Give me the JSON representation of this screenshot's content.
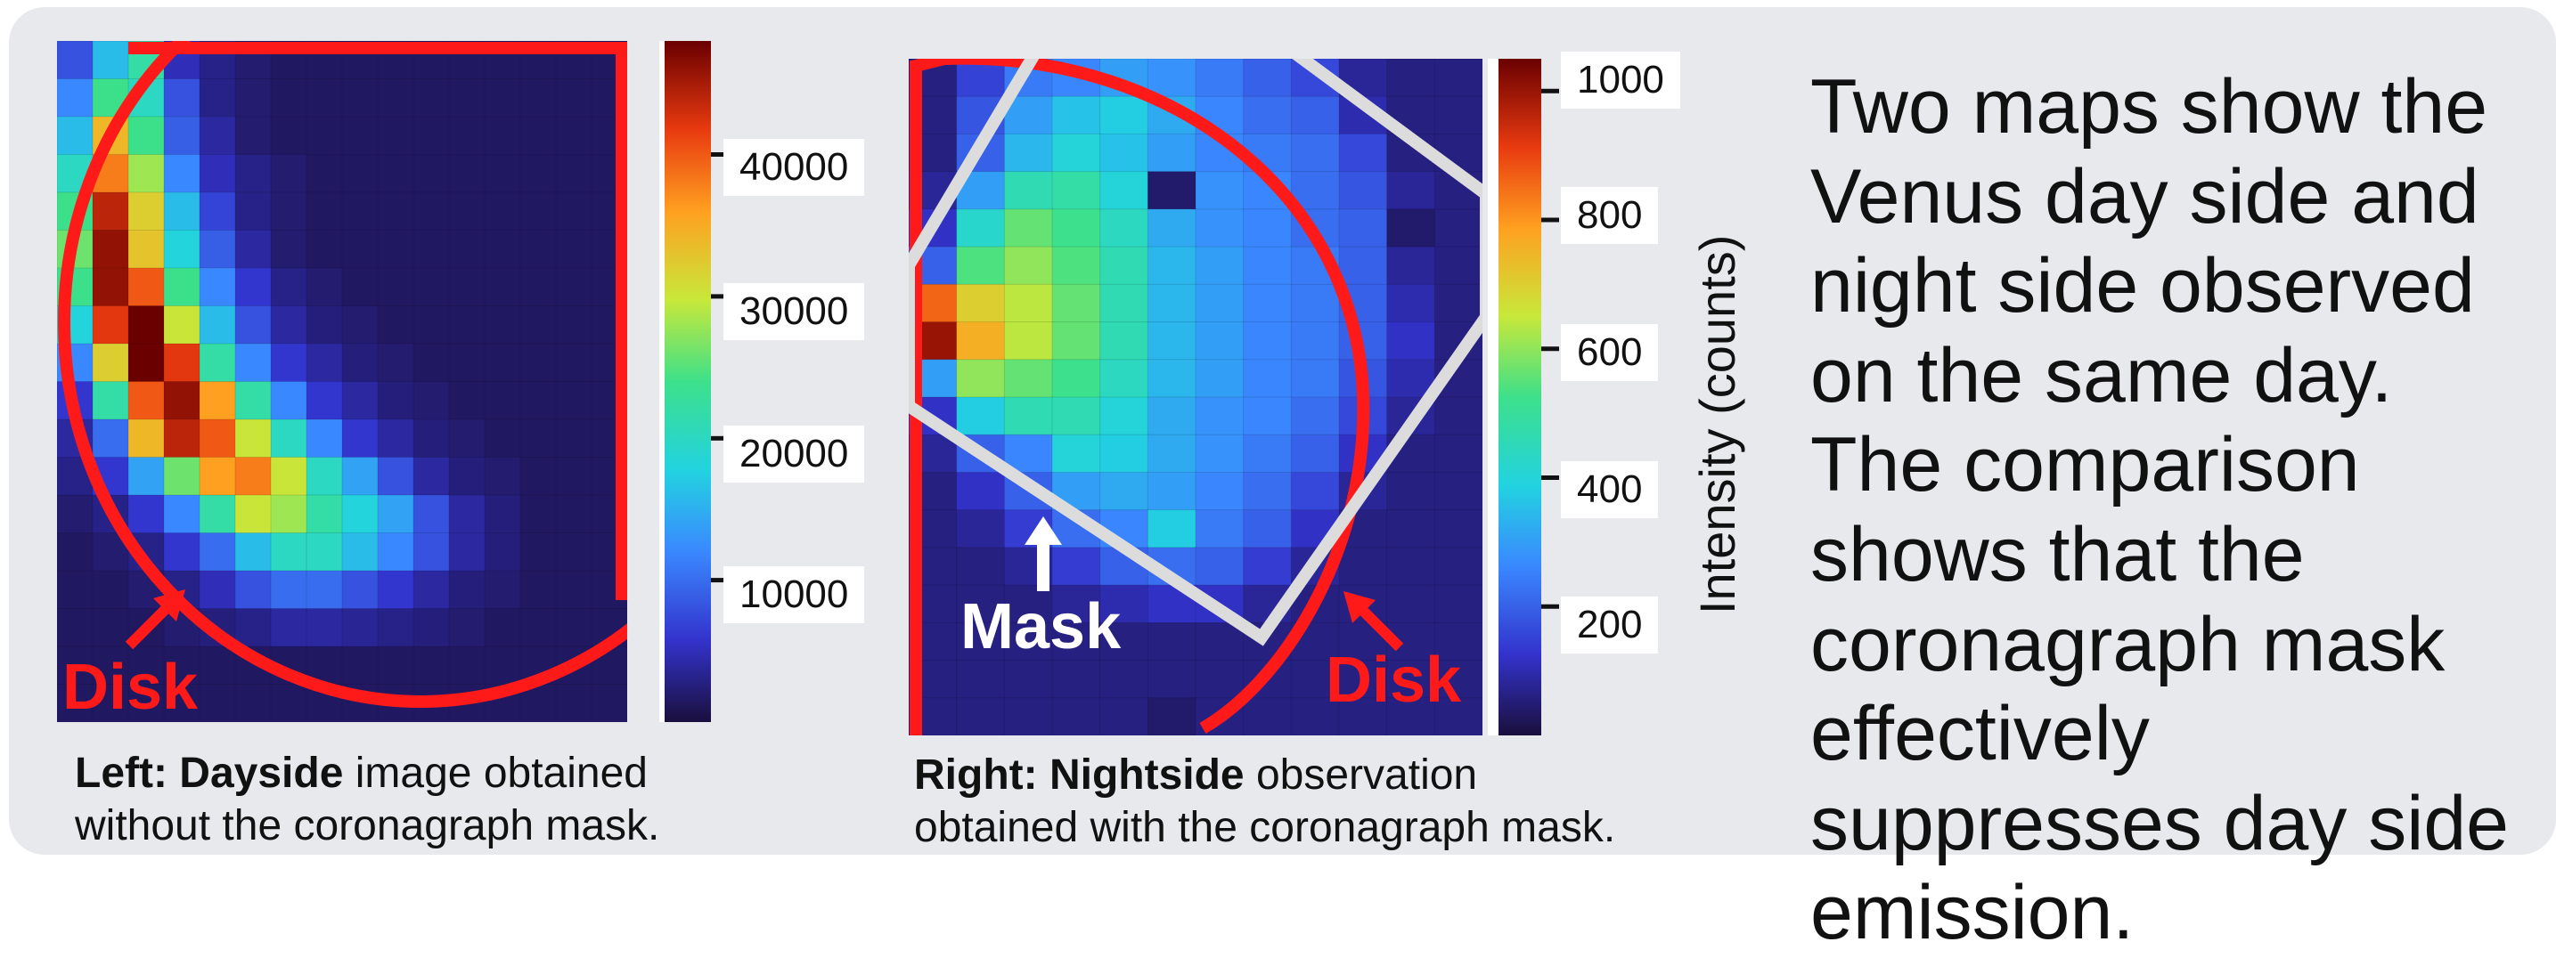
{
  "left_panel": {
    "colorbar_ticks": [
      "40000",
      "30000",
      "20000",
      "10000"
    ],
    "colorbar_range": [
      0,
      48000
    ],
    "disk_label": "Disk",
    "caption_bold": "Left: Dayside",
    "caption_rest": " image obtained",
    "caption_line2": "without the coronagraph mask."
  },
  "right_panel": {
    "colorbar_ticks": [
      "1000",
      "800",
      "600",
      "400",
      "200"
    ],
    "colorbar_range": [
      0,
      1050
    ],
    "colorbar_label": "Intensity (counts)",
    "disk_label": "Disk",
    "mask_label": "Mask",
    "caption_bold": "Right: Nightside",
    "caption_rest": " observation",
    "caption_line2": "obtained with the coronagraph mask."
  },
  "side_text": {
    "paragraph1": "Two maps show the Venus day side and night side observed on the same day.",
    "paragraph2": "The comparison shows that the coronagraph mask effectively suppresses day side emission."
  },
  "colors": {
    "disk_outline": "#ff1a1a",
    "mask_outline": "#dcdcdc",
    "panel_background": "#e7e9ec"
  },
  "chart_data": [
    {
      "type": "heatmap",
      "colormap": "jet",
      "vmin": 0,
      "vmax": 48000,
      "colorbar_ticks": [
        40000,
        30000,
        20000,
        10000
      ],
      "grid": [
        [
          8000,
          16000,
          22000,
          5000,
          3000,
          2000,
          1500,
          1500,
          1500,
          1500,
          1500,
          1500,
          1500,
          1500,
          1500,
          1500
        ],
        [
          12000,
          24000,
          20000,
          8000,
          3000,
          2000,
          1500,
          1500,
          1500,
          1500,
          1500,
          1500,
          1500,
          1500,
          1500,
          1500
        ],
        [
          16000,
          34000,
          24000,
          9000,
          4000,
          2000,
          1500,
          1500,
          1500,
          1500,
          1500,
          1500,
          1500,
          1500,
          1500,
          1500
        ],
        [
          20000,
          38000,
          28000,
          12000,
          5000,
          3000,
          2000,
          1500,
          1500,
          1500,
          1500,
          1500,
          1500,
          1500,
          1500,
          1500
        ],
        [
          24000,
          44000,
          32000,
          16000,
          7000,
          3000,
          2000,
          1500,
          1500,
          1500,
          1500,
          1500,
          1500,
          1500,
          1500,
          1500
        ],
        [
          26000,
          46000,
          33000,
          18000,
          9000,
          4000,
          2000,
          1500,
          1500,
          1500,
          1500,
          1500,
          1500,
          1500,
          1500,
          1500
        ],
        [
          24000,
          46000,
          40000,
          24000,
          12000,
          6000,
          3000,
          2000,
          1500,
          1500,
          1500,
          1500,
          1500,
          1500,
          1500,
          1500
        ],
        [
          18000,
          42000,
          48000,
          30000,
          16000,
          8000,
          4000,
          2500,
          2000,
          1500,
          1500,
          1500,
          1500,
          1500,
          1500,
          1500
        ],
        [
          12000,
          32000,
          48000,
          42000,
          22000,
          12000,
          6000,
          4000,
          2500,
          2000,
          1500,
          1500,
          1500,
          1500,
          1500,
          1500
        ],
        [
          6000,
          22000,
          40000,
          46000,
          36000,
          22000,
          12000,
          6000,
          4000,
          2500,
          2000,
          1500,
          1500,
          1500,
          1500,
          1500
        ],
        [
          4000,
          10000,
          34000,
          44000,
          40000,
          30000,
          20000,
          12000,
          6000,
          4000,
          2500,
          2000,
          1500,
          1500,
          1500,
          1500
        ],
        [
          3000,
          6000,
          14000,
          26000,
          36000,
          38000,
          30000,
          20000,
          14000,
          8000,
          4000,
          2500,
          2000,
          1500,
          1500,
          1500
        ],
        [
          2000,
          3000,
          6000,
          12000,
          22000,
          30000,
          28000,
          22000,
          18000,
          14000,
          8000,
          4000,
          2500,
          1500,
          1500,
          1500
        ],
        [
          1500,
          2000,
          3000,
          6000,
          10000,
          16000,
          20000,
          20000,
          16000,
          12000,
          8000,
          4000,
          2500,
          1500,
          1500,
          1500
        ],
        [
          1500,
          1500,
          2000,
          3000,
          5000,
          8000,
          10000,
          10000,
          8000,
          6000,
          4000,
          2500,
          2000,
          1500,
          1500,
          1500
        ],
        [
          1500,
          1500,
          1500,
          2000,
          2500,
          3000,
          4000,
          4000,
          3500,
          3000,
          2500,
          2000,
          1500,
          1500,
          1500,
          1500
        ],
        [
          1500,
          1500,
          1500,
          1500,
          1500,
          1500,
          1500,
          1500,
          1500,
          1500,
          1500,
          1500,
          1500,
          1500,
          1500,
          1500
        ],
        [
          1500,
          1500,
          1500,
          1500,
          1500,
          1500,
          1500,
          1500,
          1500,
          1500,
          1500,
          1500,
          1500,
          1500,
          1500,
          1500
        ]
      ]
    },
    {
      "type": "heatmap",
      "colormap": "jet",
      "vmin": 0,
      "vmax": 1050,
      "colorbar_ticks": [
        1000,
        800,
        600,
        400,
        200
      ],
      "colorbar_label": "Intensity (counts)",
      "grid": [
        [
          60,
          150,
          240,
          260,
          300,
          280,
          240,
          200,
          160,
          80,
          60,
          60
        ],
        [
          60,
          180,
          300,
          360,
          380,
          320,
          260,
          220,
          200,
          100,
          60,
          60
        ],
        [
          60,
          200,
          340,
          400,
          360,
          300,
          260,
          240,
          220,
          160,
          60,
          60
        ],
        [
          80,
          300,
          460,
          480,
          400,
          40,
          280,
          260,
          220,
          180,
          80,
          60
        ],
        [
          120,
          420,
          560,
          520,
          440,
          320,
          280,
          260,
          220,
          200,
          40,
          60
        ],
        [
          200,
          540,
          600,
          540,
          460,
          340,
          300,
          260,
          240,
          200,
          80,
          60
        ],
        [
          860,
          700,
          640,
          560,
          460,
          340,
          300,
          260,
          240,
          200,
          100,
          60
        ],
        [
          1000,
          760,
          640,
          560,
          460,
          340,
          300,
          260,
          240,
          200,
          120,
          60
        ],
        [
          300,
          600,
          560,
          520,
          440,
          340,
          300,
          260,
          240,
          180,
          100,
          60
        ],
        [
          120,
          380,
          460,
          460,
          400,
          320,
          280,
          260,
          220,
          160,
          80,
          60
        ],
        [
          80,
          200,
          260,
          400,
          380,
          320,
          280,
          240,
          200,
          120,
          60,
          60
        ],
        [
          60,
          120,
          200,
          300,
          320,
          300,
          260,
          220,
          160,
          80,
          60,
          60
        ],
        [
          60,
          80,
          140,
          220,
          260,
          380,
          240,
          200,
          120,
          60,
          60,
          60
        ],
        [
          60,
          60,
          80,
          140,
          200,
          220,
          200,
          140,
          80,
          60,
          60,
          60
        ],
        [
          60,
          60,
          60,
          80,
          100,
          120,
          120,
          80,
          60,
          60,
          60,
          60
        ],
        [
          60,
          60,
          60,
          60,
          60,
          60,
          60,
          60,
          60,
          60,
          60,
          60
        ],
        [
          60,
          60,
          60,
          60,
          60,
          60,
          60,
          60,
          60,
          60,
          60,
          60
        ],
        [
          60,
          60,
          60,
          60,
          60,
          40,
          60,
          60,
          60,
          60,
          60,
          60
        ]
      ]
    }
  ]
}
